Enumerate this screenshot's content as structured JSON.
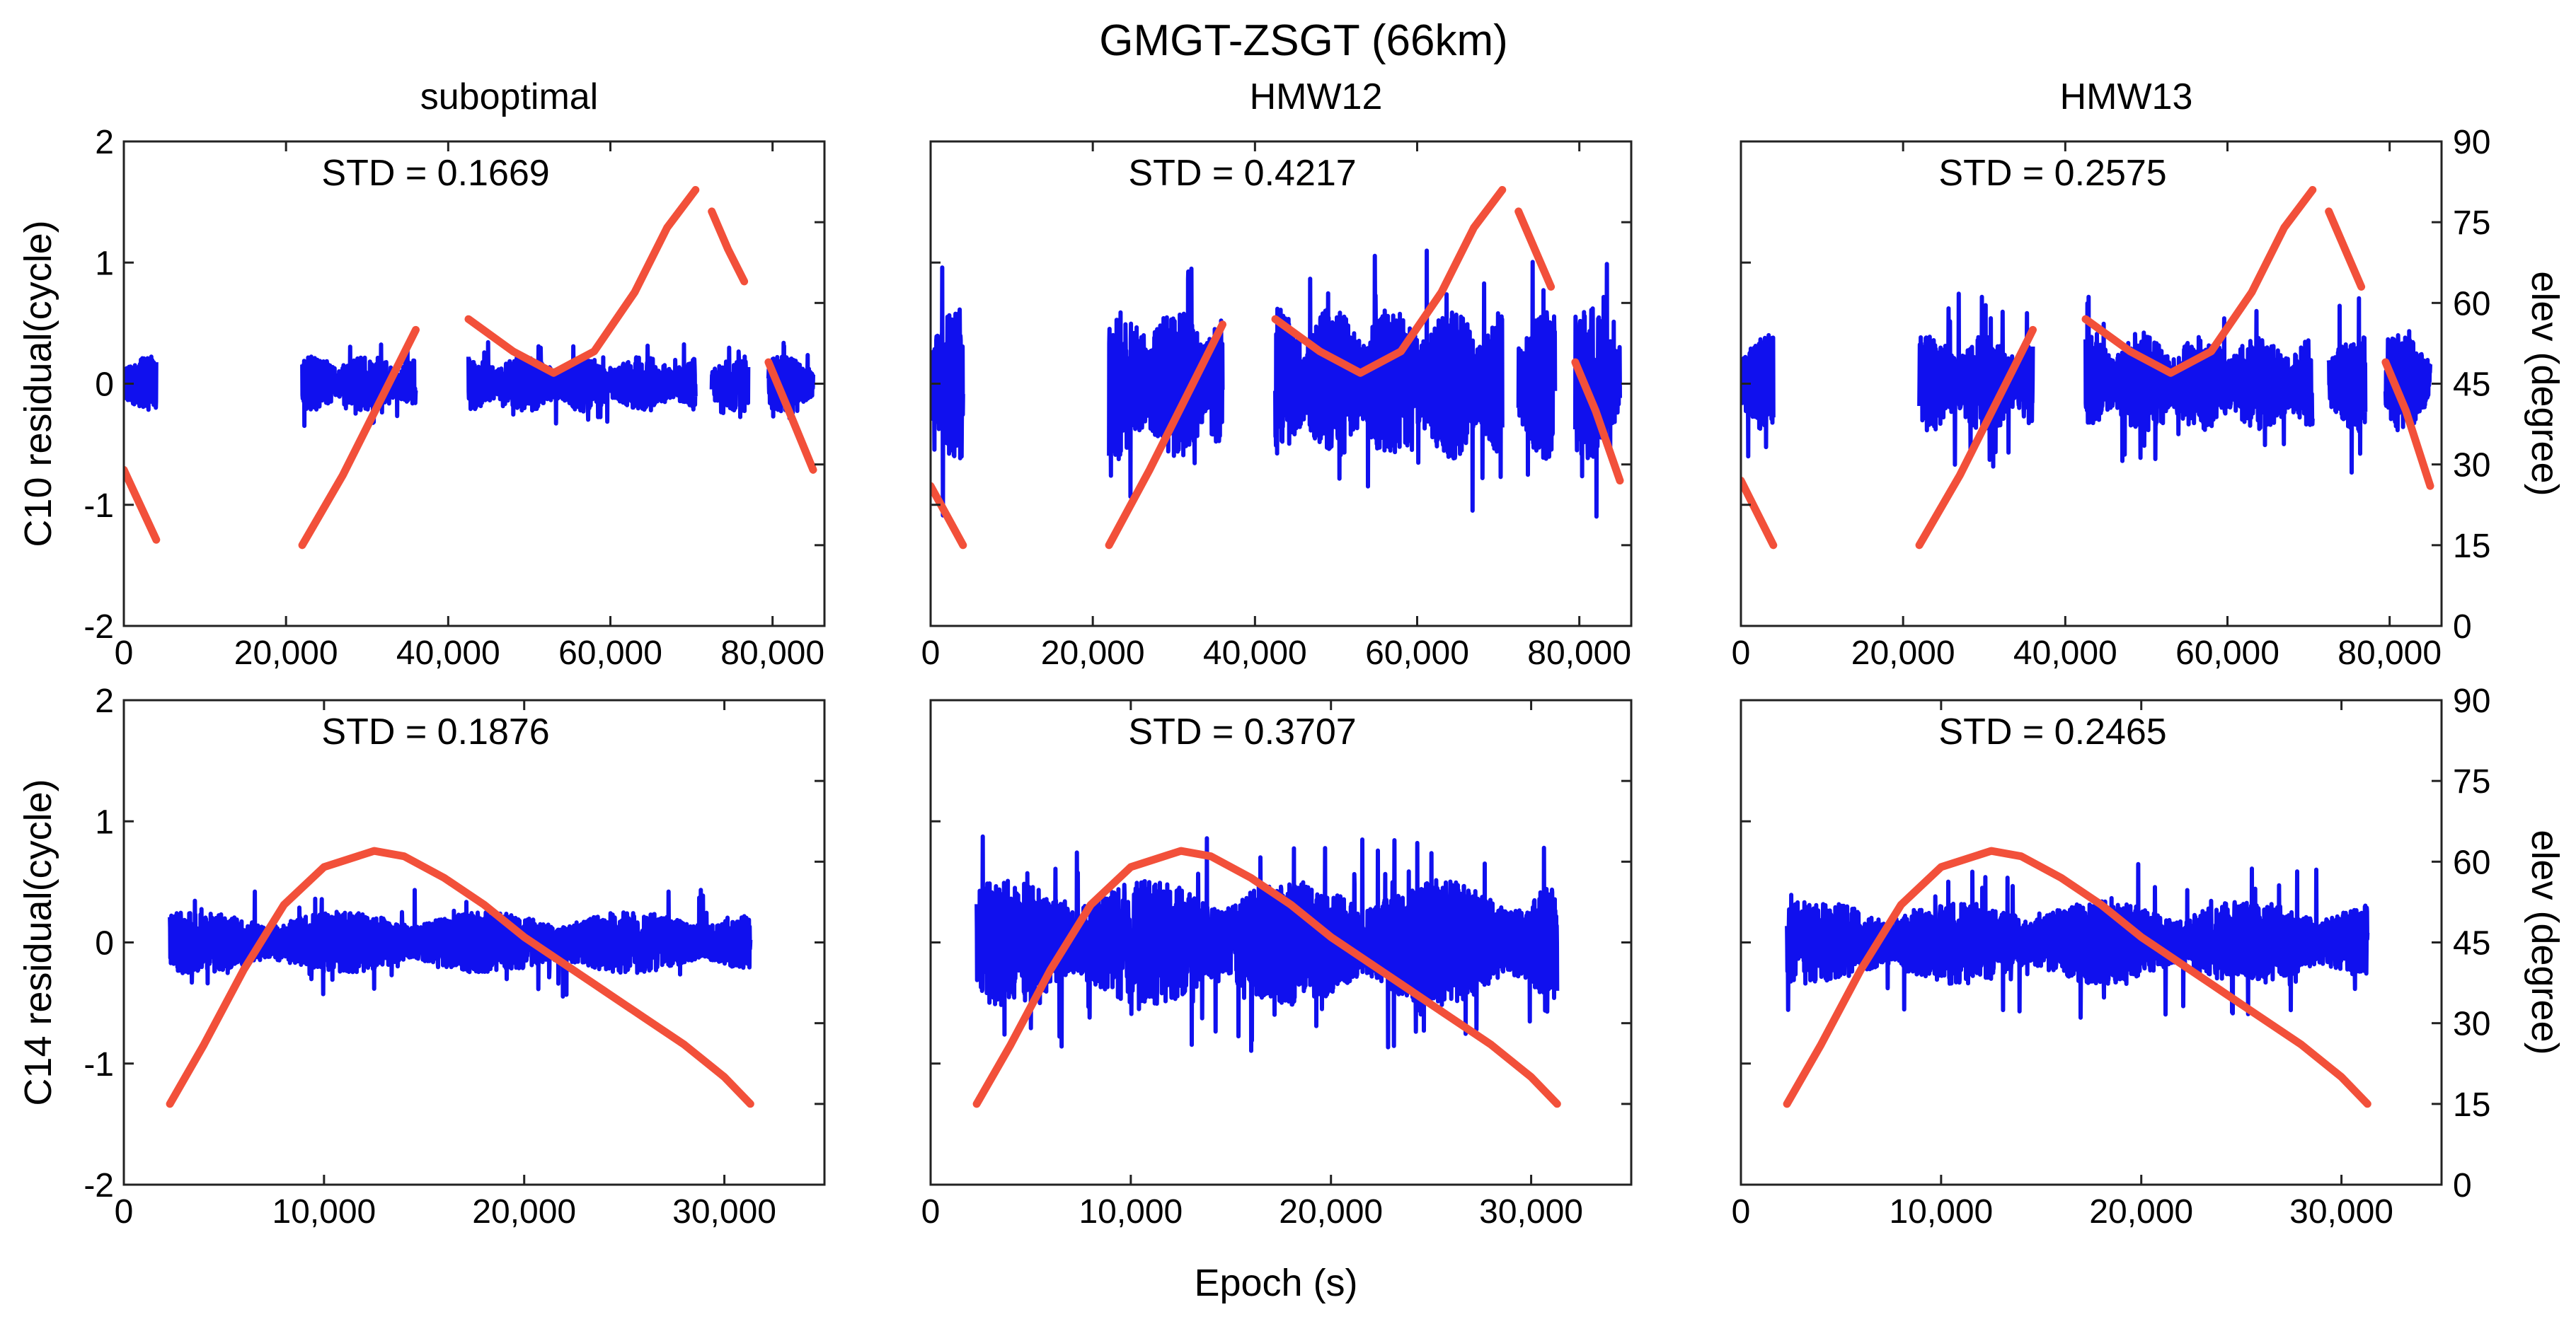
{
  "figure_title": "GMGT-ZSGT (66km)",
  "x_axis_label": "Epoch (s)",
  "colors": {
    "residual": "#1010ee",
    "elevation": "#f2503a"
  },
  "chart_data": [
    {
      "type": "scatter",
      "id": "c10-suboptimal",
      "row": "C10",
      "column_title": "suboptimal",
      "std_label": "STD = 0.1669",
      "ylabel": "C10 residual(cycle)",
      "y2label": "elev (degree)",
      "xlim": [
        0,
        86400
      ],
      "ylim": [
        -2,
        2
      ],
      "y2lim": [
        0,
        90
      ],
      "xticks": [
        0,
        20000,
        40000,
        60000,
        80000
      ],
      "xtick_labels": [
        "0",
        "20,000",
        "40,000",
        "60,000",
        "80,000"
      ],
      "yticks": [
        -2,
        -1,
        0,
        1,
        2
      ],
      "ytick_labels": [
        "-2",
        "-1",
        "0",
        "1",
        "2"
      ],
      "y2ticks": [
        0,
        15,
        30,
        45,
        60,
        75,
        90
      ],
      "y2tick_labels": [
        "0",
        "15",
        "30",
        "45",
        "60",
        "75",
        "90"
      ],
      "show_ylabel": true,
      "show_left_ticks": true,
      "show_right_ticks": false,
      "series": [
        {
          "name": "residual",
          "axis": "left",
          "spread": 0.2,
          "outlier": 0.35,
          "segments": [
            [
              0,
              4000
            ],
            [
              22000,
              36000
            ],
            [
              42500,
              70500
            ],
            [
              72500,
              77000
            ],
            [
              79500,
              85000
            ]
          ]
        },
        {
          "name": "elevation",
          "axis": "right",
          "segments": [
            [
              [
                0,
                29
              ],
              [
                4000,
                16
              ]
            ],
            [
              [
                22000,
                15
              ],
              [
                27000,
                28
              ],
              [
                32000,
                43
              ],
              [
                36000,
                55
              ]
            ],
            [
              [
                42500,
                57
              ],
              [
                48000,
                51
              ],
              [
                53000,
                47
              ],
              [
                58000,
                51
              ],
              [
                63000,
                62
              ],
              [
                67000,
                74
              ],
              [
                70500,
                81
              ]
            ],
            [
              [
                72500,
                77
              ],
              [
                74500,
                70
              ],
              [
                76500,
                64
              ]
            ],
            [
              [
                79500,
                49
              ],
              [
                82000,
                40
              ],
              [
                85000,
                29
              ]
            ]
          ]
        }
      ]
    },
    {
      "type": "scatter",
      "id": "c10-hmw12",
      "row": "C10",
      "column_title": "HMW12",
      "std_label": "STD = 0.4217",
      "ylabel": "",
      "y2label": "elev (degree)",
      "xlim": [
        0,
        86400
      ],
      "ylim": [
        -2,
        2
      ],
      "y2lim": [
        0,
        90
      ],
      "xticks": [
        0,
        20000,
        40000,
        60000,
        80000
      ],
      "xtick_labels": [
        "0",
        "20,000",
        "40,000",
        "60,000",
        "80,000"
      ],
      "yticks": [
        -2,
        -1,
        0,
        1,
        2
      ],
      "ytick_labels": [
        "-2",
        "-1",
        "0",
        "1",
        "2"
      ],
      "y2ticks": [
        0,
        15,
        30,
        45,
        60,
        75,
        90
      ],
      "y2tick_labels": [
        "0",
        "15",
        "30",
        "45",
        "60",
        "75",
        "90"
      ],
      "show_ylabel": false,
      "show_left_ticks": false,
      "show_right_ticks": false,
      "series": [
        {
          "name": "residual",
          "axis": "left",
          "spread": 0.55,
          "outlier": 1.1,
          "segments": [
            [
              0,
              4000
            ],
            [
              22000,
              36000
            ],
            [
              42500,
              70500
            ],
            [
              72500,
              77000
            ],
            [
              79500,
              85000
            ]
          ]
        },
        {
          "name": "elevation",
          "axis": "right",
          "segments": [
            [
              [
                0,
                26
              ],
              [
                4000,
                15
              ]
            ],
            [
              [
                22000,
                15
              ],
              [
                27000,
                29
              ],
              [
                32000,
                44
              ],
              [
                36000,
                56
              ]
            ],
            [
              [
                42500,
                57
              ],
              [
                48000,
                51
              ],
              [
                53000,
                47
              ],
              [
                58000,
                51
              ],
              [
                63000,
                62
              ],
              [
                67000,
                74
              ],
              [
                70500,
                81
              ]
            ],
            [
              [
                72500,
                77
              ],
              [
                74500,
                70
              ],
              [
                76500,
                63
              ]
            ],
            [
              [
                79500,
                49
              ],
              [
                82000,
                40
              ],
              [
                85000,
                27
              ]
            ]
          ]
        }
      ]
    },
    {
      "type": "scatter",
      "id": "c10-hmw13",
      "row": "C10",
      "column_title": "HMW13",
      "std_label": "STD = 0.2575",
      "ylabel": "",
      "y2label": "elev (degree)",
      "xlim": [
        0,
        86400
      ],
      "ylim": [
        -2,
        2
      ],
      "y2lim": [
        0,
        90
      ],
      "xticks": [
        0,
        20000,
        40000,
        60000,
        80000
      ],
      "xtick_labels": [
        "0",
        "20,000",
        "40,000",
        "60,000",
        "80,000"
      ],
      "yticks": [
        -2,
        -1,
        0,
        1,
        2
      ],
      "ytick_labels": [
        "-2",
        "-1",
        "0",
        "1",
        "2"
      ],
      "y2ticks": [
        0,
        15,
        30,
        45,
        60,
        75,
        90
      ],
      "y2tick_labels": [
        "0",
        "15",
        "30",
        "45",
        "60",
        "75",
        "90"
      ],
      "show_ylabel": false,
      "show_left_ticks": false,
      "show_right_ticks": true,
      "series": [
        {
          "name": "residual",
          "axis": "left",
          "spread": 0.35,
          "outlier": 0.75,
          "segments": [
            [
              0,
              4000
            ],
            [
              22000,
              36000
            ],
            [
              42500,
              70500
            ],
            [
              72500,
              77000
            ],
            [
              79500,
              85000
            ]
          ]
        },
        {
          "name": "elevation",
          "axis": "right",
          "segments": [
            [
              [
                0,
                27
              ],
              [
                4000,
                15
              ]
            ],
            [
              [
                22000,
                15
              ],
              [
                27000,
                28
              ],
              [
                32000,
                43
              ],
              [
                36000,
                55
              ]
            ],
            [
              [
                42500,
                57
              ],
              [
                48000,
                51
              ],
              [
                53000,
                47
              ],
              [
                58000,
                51
              ],
              [
                63000,
                62
              ],
              [
                67000,
                74
              ],
              [
                70500,
                81
              ]
            ],
            [
              [
                72500,
                77
              ],
              [
                74500,
                70
              ],
              [
                76500,
                63
              ]
            ],
            [
              [
                79500,
                49
              ],
              [
                82000,
                40
              ],
              [
                85000,
                26
              ]
            ]
          ]
        }
      ]
    },
    {
      "type": "scatter",
      "id": "c14-suboptimal",
      "row": "C14",
      "column_title": "",
      "std_label": "STD = 0.1876",
      "ylabel": "C14 residual(cycle)",
      "y2label": "elev (degree)",
      "xlim": [
        0,
        35000
      ],
      "ylim": [
        -2,
        2
      ],
      "y2lim": [
        0,
        90
      ],
      "xticks": [
        0,
        10000,
        20000,
        30000
      ],
      "xtick_labels": [
        "0",
        "10,000",
        "20,000",
        "30,000"
      ],
      "yticks": [
        -2,
        -1,
        0,
        1,
        2
      ],
      "ytick_labels": [
        "-2",
        "-1",
        "0",
        "1",
        "2"
      ],
      "y2ticks": [
        0,
        15,
        30,
        45,
        60,
        75,
        90
      ],
      "y2tick_labels": [
        "0",
        "15",
        "30",
        "45",
        "60",
        "75",
        "90"
      ],
      "show_ylabel": true,
      "show_left_ticks": true,
      "show_right_ticks": false,
      "series": [
        {
          "name": "residual",
          "axis": "left",
          "spread": 0.22,
          "outlier": 0.45,
          "segments": [
            [
              2300,
              31300
            ]
          ]
        },
        {
          "name": "elevation",
          "axis": "right",
          "segments": [
            [
              [
                2300,
                15
              ],
              [
                4000,
                26
              ],
              [
                6000,
                40
              ],
              [
                8000,
                52
              ],
              [
                10000,
                59
              ],
              [
                12500,
                62
              ],
              [
                14000,
                61
              ],
              [
                16000,
                57
              ],
              [
                18000,
                52
              ],
              [
                20000,
                46
              ],
              [
                22000,
                41
              ],
              [
                24000,
                36
              ],
              [
                26000,
                31
              ],
              [
                28000,
                26
              ],
              [
                30000,
                20
              ],
              [
                31300,
                15
              ]
            ]
          ]
        }
      ]
    },
    {
      "type": "scatter",
      "id": "c14-hmw12",
      "row": "C14",
      "column_title": "",
      "std_label": "STD = 0.3707",
      "ylabel": "",
      "y2label": "elev (degree)",
      "xlim": [
        0,
        35000
      ],
      "ylim": [
        -2,
        2
      ],
      "y2lim": [
        0,
        90
      ],
      "xticks": [
        0,
        10000,
        20000,
        30000
      ],
      "xtick_labels": [
        "0",
        "10,000",
        "20,000",
        "30,000"
      ],
      "yticks": [
        -2,
        -1,
        0,
        1,
        2
      ],
      "ytick_labels": [
        "-2",
        "-1",
        "0",
        "1",
        "2"
      ],
      "y2ticks": [
        0,
        15,
        30,
        45,
        60,
        75,
        90
      ],
      "y2tick_labels": [
        "0",
        "15",
        "30",
        "45",
        "60",
        "75",
        "90"
      ],
      "show_ylabel": false,
      "show_left_ticks": false,
      "show_right_ticks": false,
      "series": [
        {
          "name": "residual",
          "axis": "left",
          "spread": 0.45,
          "outlier": 0.9,
          "segments": [
            [
              2300,
              31300
            ]
          ]
        },
        {
          "name": "elevation",
          "axis": "right",
          "segments": [
            [
              [
                2300,
                15
              ],
              [
                4000,
                26
              ],
              [
                6000,
                40
              ],
              [
                8000,
                52
              ],
              [
                10000,
                59
              ],
              [
                12500,
                62
              ],
              [
                14000,
                61
              ],
              [
                16000,
                57
              ],
              [
                18000,
                52
              ],
              [
                20000,
                46
              ],
              [
                22000,
                41
              ],
              [
                24000,
                36
              ],
              [
                26000,
                31
              ],
              [
                28000,
                26
              ],
              [
                30000,
                20
              ],
              [
                31300,
                15
              ]
            ]
          ]
        }
      ]
    },
    {
      "type": "scatter",
      "id": "c14-hmw13",
      "row": "C14",
      "column_title": "",
      "std_label": "STD = 0.2465",
      "ylabel": "",
      "y2label": "elev (degree)",
      "xlim": [
        0,
        35000
      ],
      "ylim": [
        -2,
        2
      ],
      "y2lim": [
        0,
        90
      ],
      "xticks": [
        0,
        10000,
        20000,
        30000
      ],
      "xtick_labels": [
        "0",
        "10,000",
        "20,000",
        "30,000"
      ],
      "yticks": [
        -2,
        -1,
        0,
        1,
        2
      ],
      "ytick_labels": [
        "-2",
        "-1",
        "0",
        "1",
        "2"
      ],
      "y2ticks": [
        0,
        15,
        30,
        45,
        60,
        75,
        90
      ],
      "y2tick_labels": [
        "0",
        "15",
        "30",
        "45",
        "60",
        "75",
        "90"
      ],
      "show_ylabel": false,
      "show_left_ticks": false,
      "show_right_ticks": true,
      "series": [
        {
          "name": "residual",
          "axis": "left",
          "spread": 0.3,
          "outlier": 0.65,
          "segments": [
            [
              2300,
              31300
            ]
          ]
        },
        {
          "name": "elevation",
          "axis": "right",
          "segments": [
            [
              [
                2300,
                15
              ],
              [
                4000,
                26
              ],
              [
                6000,
                40
              ],
              [
                8000,
                52
              ],
              [
                10000,
                59
              ],
              [
                12500,
                62
              ],
              [
                14000,
                61
              ],
              [
                16000,
                57
              ],
              [
                18000,
                52
              ],
              [
                20000,
                46
              ],
              [
                22000,
                41
              ],
              [
                24000,
                36
              ],
              [
                26000,
                31
              ],
              [
                28000,
                26
              ],
              [
                30000,
                20
              ],
              [
                31300,
                15
              ]
            ]
          ]
        }
      ]
    }
  ]
}
